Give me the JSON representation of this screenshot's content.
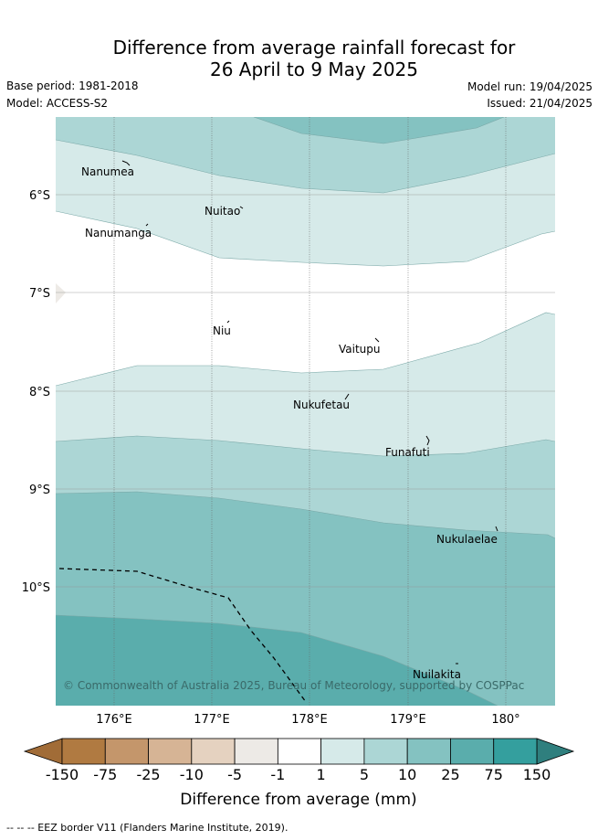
{
  "title_line1": "Difference from average rainfall forecast for",
  "title_line2": "26 April to 9 May 2025",
  "base_period": "Base period: 1981-2018",
  "model": "Model: ACCESS-S2",
  "model_run": "Model run: 19/04/2025",
  "issued": "Issued: 21/04/2025",
  "copyright": "© Commonwealth of Australia 2025, Bureau of Meteorology, supported by COSPPac",
  "lat_ticks": [
    "6°S",
    "7°S",
    "8°S",
    "9°S",
    "10°S"
  ],
  "lon_ticks": [
    "176°E",
    "177°E",
    "178°E",
    "179°E",
    "180°"
  ],
  "places": [
    {
      "name": "Nanumea",
      "lon": 176.15,
      "lat": -5.68
    },
    {
      "name": "Nuitao",
      "lon": 177.3,
      "lat": -6.11
    },
    {
      "name": "Nanumanga",
      "lon": 176.33,
      "lat": -6.29
    },
    {
      "name": "Niu",
      "lon": 177.16,
      "lat": -7.29
    },
    {
      "name": "Vaitupu",
      "lon": 178.68,
      "lat": -7.48
    },
    {
      "name": "Nukufetau",
      "lon": 178.38,
      "lat": -8.03
    },
    {
      "name": "Funafuti",
      "lon": 179.2,
      "lat": -8.52
    },
    {
      "name": "Nukulaelae",
      "lon": 179.85,
      "lat": -9.4
    },
    {
      "name": "Nuilakita",
      "lon": 179.5,
      "lat": -10.8
    }
  ],
  "colorbar": {
    "labels": [
      "-150",
      "-75",
      "-25",
      "-10",
      "-5",
      "-1",
      "1",
      "5",
      "10",
      "25",
      "75",
      "150"
    ],
    "colors": [
      "#b07a41",
      "#c4966b",
      "#d6b495",
      "#e5d2c0",
      "#edeae6",
      "#ffffff",
      "#d6eae9",
      "#acd6d5",
      "#84c2c1",
      "#5aadac",
      "#349f9e"
    ],
    "extend_low_color": "#a16c37",
    "extend_high_color": "#2f7f7e",
    "label": "Difference from average (mm)"
  },
  "footnote": "--  --  -- EEZ border V11 (Flanders Marine Institute, 2019)."
}
